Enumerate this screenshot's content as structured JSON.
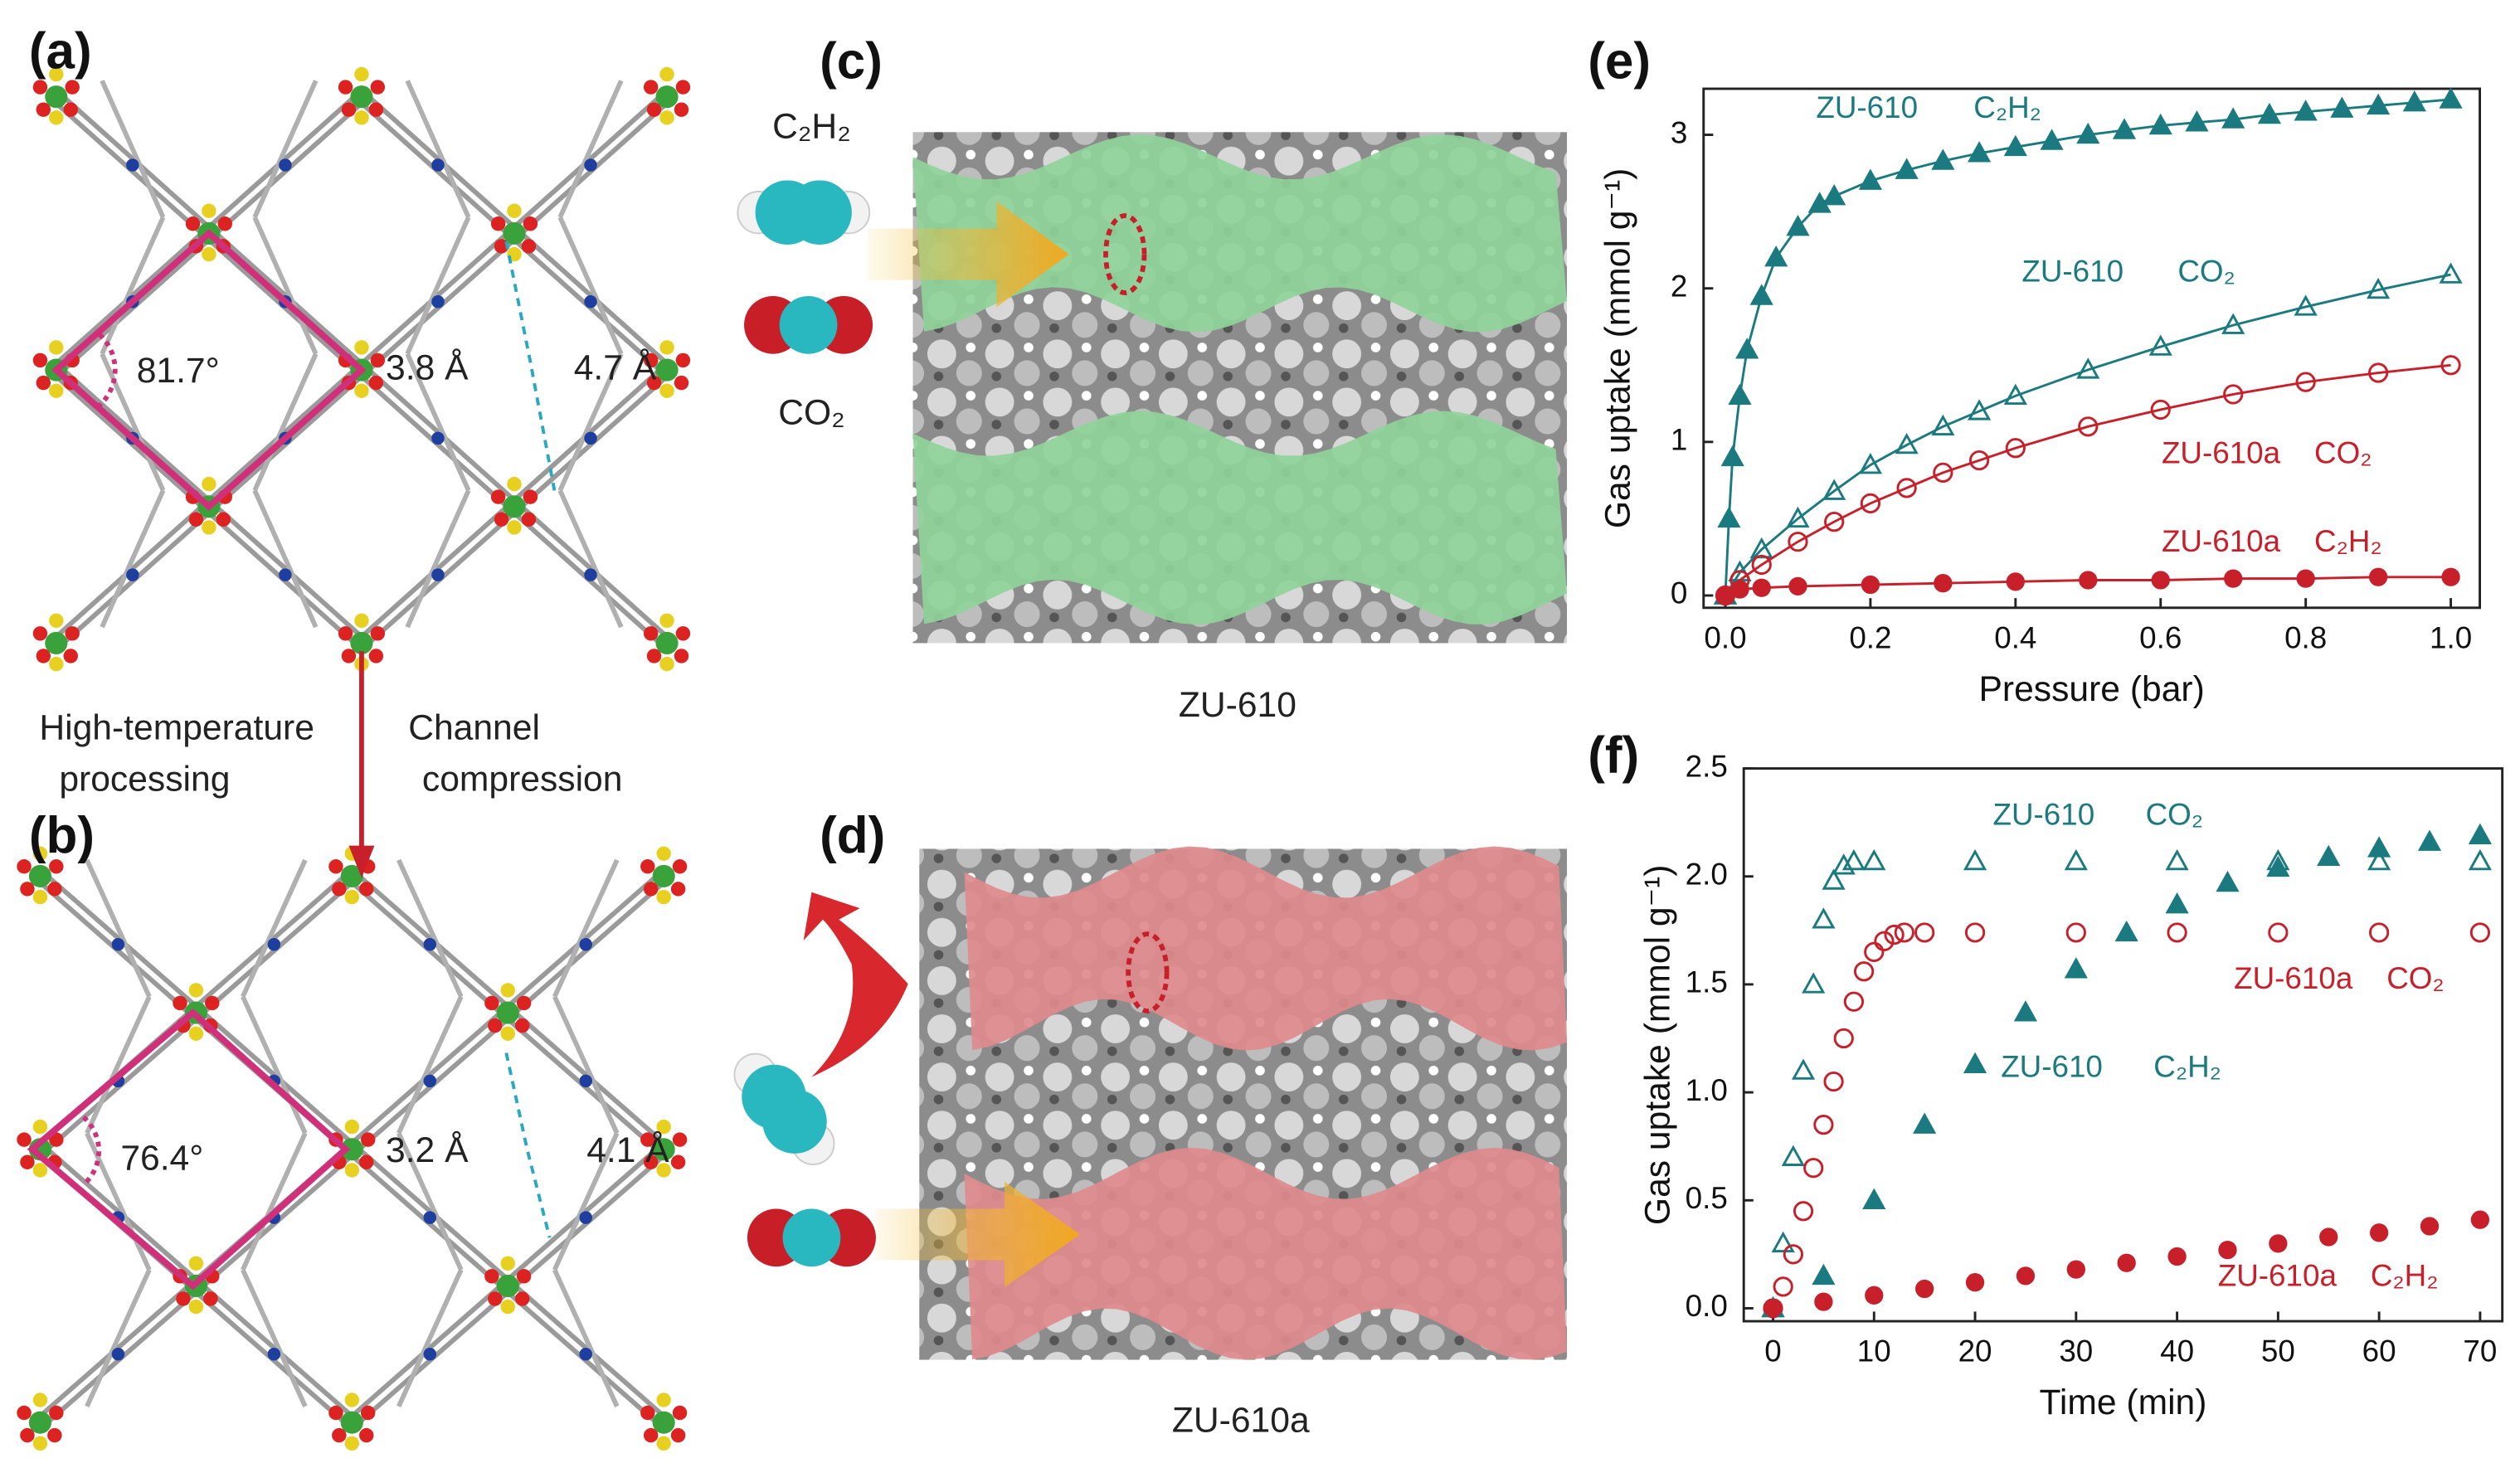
{
  "figure": {
    "panel_labels": [
      "(a)",
      "(b)",
      "(c)",
      "(d)",
      "(e)",
      "(f)"
    ],
    "a": {
      "angle": "81.7°",
      "dist1": "3.8 Å",
      "dist2": "4.7 Å"
    },
    "b": {
      "angle": "76.4°",
      "dist1": "3.2 Å",
      "dist2": "4.1 Å"
    },
    "transition": {
      "left": [
        "High-temperature",
        "processing"
      ],
      "right": [
        "Channel",
        "compression"
      ]
    },
    "c": {
      "gases": [
        "C₂H₂",
        "CO₂"
      ],
      "caption": "ZU-610"
    },
    "d": {
      "caption": "ZU-610a"
    }
  },
  "chart_data": [
    {
      "type": "line",
      "xlabel": "Pressure (bar)",
      "ylabel": "Gas uptake (mmol g⁻¹)",
      "xlim": [
        -0.03,
        1.04
      ],
      "ylim": [
        -0.08,
        3.3
      ],
      "xticks": [
        {
          "value": 0,
          "label": "0.0"
        },
        {
          "value": 0.2,
          "label": "0.2"
        },
        {
          "value": 0.4,
          "label": "0.4"
        },
        {
          "value": 0.6,
          "label": "0.6"
        },
        {
          "value": 0.8,
          "label": "0.8"
        },
        {
          "value": 1,
          "label": "1.0"
        }
      ],
      "yticks": [
        0,
        1,
        2,
        3
      ],
      "series": [
        {
          "name": "ZU-610",
          "label": "C₂H₂",
          "color": "#1b7a80",
          "marker": "triangle",
          "x": [
            0,
            0.005,
            0.01,
            0.02,
            0.03,
            0.05,
            0.07,
            0.1,
            0.13,
            0.15,
            0.2,
            0.25,
            0.3,
            0.35,
            0.4,
            0.45,
            0.5,
            0.55,
            0.6,
            0.65,
            0.7,
            0.75,
            0.8,
            0.85,
            0.9,
            0.95,
            1.0
          ],
          "values": [
            0,
            0.5,
            0.9,
            1.3,
            1.6,
            1.95,
            2.2,
            2.4,
            2.55,
            2.6,
            2.7,
            2.77,
            2.83,
            2.88,
            2.92,
            2.96,
            3.0,
            3.03,
            3.06,
            3.08,
            3.1,
            3.13,
            3.15,
            3.17,
            3.19,
            3.21,
            3.23
          ]
        },
        {
          "name": "ZU-610",
          "label": "CO₂",
          "color": "#1b7a80",
          "marker": "triangle-open",
          "x": [
            0,
            0.02,
            0.05,
            0.1,
            0.15,
            0.2,
            0.25,
            0.3,
            0.35,
            0.4,
            0.5,
            0.6,
            0.7,
            0.8,
            0.9,
            1.0
          ],
          "values": [
            0,
            0.15,
            0.3,
            0.5,
            0.68,
            0.85,
            0.98,
            1.1,
            1.2,
            1.3,
            1.47,
            1.62,
            1.76,
            1.88,
            1.99,
            2.09
          ]
        },
        {
          "name": "ZU-610a",
          "label": "CO₂",
          "color": "#c8202a",
          "marker": "circle-open",
          "x": [
            0,
            0.02,
            0.05,
            0.1,
            0.15,
            0.2,
            0.25,
            0.3,
            0.35,
            0.4,
            0.5,
            0.6,
            0.7,
            0.8,
            0.9,
            1.0
          ],
          "values": [
            0,
            0.1,
            0.2,
            0.35,
            0.48,
            0.6,
            0.7,
            0.8,
            0.88,
            0.96,
            1.1,
            1.21,
            1.31,
            1.39,
            1.45,
            1.5
          ]
        },
        {
          "name": "ZU-610a",
          "label": "C₂H₂",
          "color": "#c8202a",
          "marker": "circle",
          "x": [
            0,
            0.02,
            0.05,
            0.1,
            0.2,
            0.3,
            0.4,
            0.5,
            0.6,
            0.7,
            0.8,
            0.9,
            1.0
          ],
          "values": [
            0,
            0.04,
            0.05,
            0.06,
            0.07,
            0.08,
            0.09,
            0.1,
            0.1,
            0.11,
            0.11,
            0.12,
            0.12
          ]
        }
      ]
    },
    {
      "type": "scatter",
      "xlabel": "Time (min)",
      "ylabel": "Gas uptake (mmol g⁻¹)",
      "xlim": [
        -2.9,
        72.2
      ],
      "ylim": [
        -0.06,
        2.5
      ],
      "xticks": [
        0,
        10,
        20,
        30,
        40,
        50,
        60,
        70
      ],
      "yticks": [
        {
          "value": 0,
          "label": "0.0"
        },
        {
          "value": 0.5,
          "label": "0.5"
        },
        {
          "value": 1,
          "label": "1.0"
        },
        {
          "value": 1.5,
          "label": "1.5"
        },
        {
          "value": 2,
          "label": "2.0"
        },
        {
          "value": 2.5,
          "label": "2.5"
        }
      ],
      "series": [
        {
          "name": "ZU-610",
          "label": "CO₂",
          "color": "#1b7a80",
          "marker": "triangle-open",
          "x": [
            0,
            1,
            2,
            3,
            4,
            5,
            6,
            7,
            8,
            10,
            20,
            30,
            40,
            50,
            60,
            70
          ],
          "values": [
            0,
            0.3,
            0.7,
            1.1,
            1.5,
            1.8,
            1.98,
            2.05,
            2.07,
            2.07,
            2.07,
            2.07,
            2.07,
            2.07,
            2.07,
            2.07
          ]
        },
        {
          "name": "ZU-610a",
          "label": "CO₂",
          "color": "#c8202a",
          "marker": "circle-open",
          "x": [
            0,
            1,
            2,
            3,
            4,
            5,
            6,
            7,
            8,
            9,
            10,
            11,
            12,
            13,
            15,
            20,
            30,
            40,
            50,
            60,
            70
          ],
          "values": [
            0,
            0.1,
            0.25,
            0.45,
            0.65,
            0.85,
            1.05,
            1.25,
            1.42,
            1.56,
            1.65,
            1.7,
            1.73,
            1.74,
            1.74,
            1.74,
            1.74,
            1.74,
            1.74,
            1.74,
            1.74
          ]
        },
        {
          "name": "ZU-610",
          "label": "C₂H₂",
          "color": "#1b7a80",
          "marker": "triangle",
          "x": [
            0,
            5,
            10,
            15,
            20,
            25,
            30,
            35,
            40,
            45,
            50,
            55,
            60,
            65,
            70
          ],
          "values": [
            0,
            0.15,
            0.5,
            0.85,
            1.13,
            1.37,
            1.57,
            1.74,
            1.87,
            1.97,
            2.04,
            2.09,
            2.13,
            2.16,
            2.19
          ]
        },
        {
          "name": "ZU-610a",
          "label": "C₂H₂",
          "color": "#c8202a",
          "marker": "circle",
          "x": [
            0,
            5,
            10,
            15,
            20,
            25,
            30,
            35,
            40,
            45,
            50,
            55,
            60,
            65,
            70
          ],
          "values": [
            0,
            0.03,
            0.06,
            0.09,
            0.12,
            0.15,
            0.18,
            0.21,
            0.24,
            0.27,
            0.3,
            0.33,
            0.35,
            0.38,
            0.41
          ]
        }
      ]
    }
  ]
}
